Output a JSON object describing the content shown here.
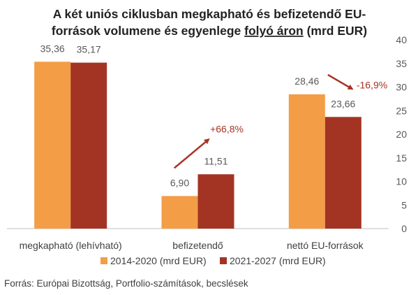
{
  "title_line1": "A két uniós ciklusban megkapható és befizetendő EU-",
  "title_line2_a": "források volumene és egyenlege ",
  "title_line2_u": "folyó áron",
  "title_line2_b": " (mrd EUR)",
  "source": "Forrás: Európai Bizottság, Portfolio-számítások, becslések",
  "colors": {
    "series1": "#f39d47",
    "series2": "#a33424",
    "annotation": "#a63325",
    "axis": "#bfbfbf"
  },
  "chart_data": {
    "type": "bar",
    "categories": [
      "megkapható (lehívható)",
      "befizetendő",
      "nettó EU-források"
    ],
    "series": [
      {
        "name": "2014-2020 (mrd EUR)",
        "values": [
          35.36,
          6.9,
          28.46
        ],
        "labels": [
          "35,36",
          "6,90",
          "28,46"
        ]
      },
      {
        "name": "2021-2027 (mrd EUR)",
        "values": [
          35.17,
          11.51,
          23.66
        ],
        "labels": [
          "35,17",
          "11,51",
          "23,66"
        ]
      }
    ],
    "ylim": [
      0,
      40
    ],
    "yticks": [
      0,
      5,
      10,
      15,
      20,
      25,
      30,
      35,
      40
    ],
    "y_axis_side": "right",
    "grid": false,
    "legend_position": "bottom",
    "annotations": [
      {
        "category_index": 1,
        "text": "+66,8%",
        "direction": "up"
      },
      {
        "category_index": 2,
        "text": "-16,9%",
        "direction": "down"
      }
    ]
  }
}
